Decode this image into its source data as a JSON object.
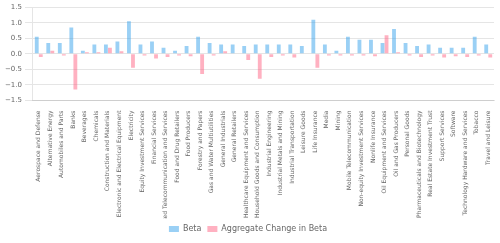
{
  "chart_data": {
    "type": "bar",
    "categories": [
      "Aerospace and Defense",
      "Alternative Energy",
      "Automobiles and Parts",
      "Banks",
      "Beverages",
      "Chemicals",
      "Construction and Materials",
      "Electronic and Electrical Equipment",
      "Electricity",
      "Equity Investment Services",
      "Financial Services",
      "Fixed Telecommunication and Services",
      "Food and Drug Retailers",
      "Food Producers",
      "Forestry and Papers",
      "Gas and Water Multiutilities",
      "General Industrials",
      "General Retailers",
      "Healthcare Equipment and Services",
      "Household Goods and Consumption",
      "Industrial Engineering",
      "Industrial Metals and Mining",
      "Industrial Transportation",
      "Leisure Goods",
      "Life Insurance",
      "Media",
      "Mining",
      "Mobile Telecommunication",
      "Non-equity Investment Services",
      "Nonlife Insurance",
      "Oil Equipment and Services",
      "Oil and Gas Producers",
      "Personal Goods",
      "Pharmaceuticals and Biotechnology",
      "Real Estate Investment Trust",
      "Support Services",
      "Software",
      "Technology Hardware and Services",
      "Tobacco",
      "Travel and Leisure"
    ],
    "series": [
      {
        "name": "Beta",
        "values": [
          0.55,
          0.35,
          0.35,
          0.85,
          0.1,
          0.3,
          0.3,
          0.4,
          1.05,
          0.3,
          0.4,
          0.2,
          0.1,
          0.25,
          0.55,
          0.35,
          0.3,
          0.3,
          0.25,
          0.3,
          0.3,
          0.3,
          0.3,
          0.25,
          1.1,
          0.3,
          0.1,
          0.55,
          0.45,
          0.45,
          0.35,
          0.8,
          0.35,
          0.25,
          0.3,
          0.2,
          0.2,
          0.2,
          0.55,
          0.3
        ]
      },
      {
        "name": "Aggregate Change in Beta",
        "values": [
          -0.1,
          0.1,
          -0.05,
          -1.15,
          0.05,
          0.05,
          0.2,
          0.08,
          -0.45,
          -0.05,
          -0.15,
          -0.1,
          -0.05,
          -0.08,
          -0.65,
          -0.05,
          0.08,
          0.0,
          -0.2,
          -0.8,
          -0.1,
          -0.05,
          -0.12,
          0.0,
          -0.45,
          -0.05,
          -0.05,
          -0.05,
          -0.05,
          -0.08,
          0.6,
          0.05,
          -0.05,
          -0.1,
          -0.05,
          -0.12,
          -0.08,
          -0.1,
          -0.05,
          -0.12
        ]
      }
    ],
    "ylim": [
      -1.5,
      1.5
    ],
    "yticks": [
      {
        "value": -1.5,
        "label": "−1.5"
      },
      {
        "value": -1.0,
        "label": "−1.0"
      },
      {
        "value": -0.5,
        "label": "−0.5"
      },
      {
        "value": 0.0,
        "label": "0.0"
      },
      {
        "value": 0.5,
        "label": "0.5"
      },
      {
        "value": 1.0,
        "label": "1.0"
      },
      {
        "value": 1.5,
        "label": "1.5"
      }
    ],
    "grid": true,
    "legend": "bottom"
  }
}
